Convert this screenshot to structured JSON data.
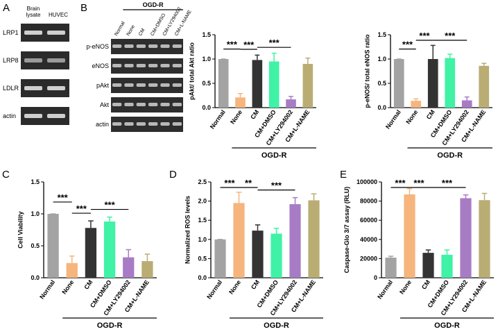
{
  "blots": [
    {
      "panel": "A",
      "columns": [
        "Brain lysate",
        "HUVEC"
      ],
      "rows": [
        "LRP1",
        "LRP8",
        "LDLR",
        "actin"
      ]
    },
    {
      "panel": "B",
      "group": "OGD-R",
      "columns": [
        "Normal",
        "None",
        "CM",
        "CM+DMSO",
        "CM+LY294002",
        "CM+L-NAME"
      ],
      "rows": [
        "p-eNOS",
        "eNOS",
        "pAkt",
        "Akt",
        "actin"
      ]
    }
  ],
  "chart_data": [
    {
      "type": "bar",
      "ylabel": "pAkt/ total Akt ratio",
      "categories": [
        "Normal",
        "None",
        "CM",
        "CM+DMSO",
        "CM+LY294002",
        "CM+L-NAME"
      ],
      "colors": [
        "#a3a3a3",
        "#f5b57d",
        "#333333",
        "#3ff2a6",
        "#a77cc5",
        "#b9ad74"
      ],
      "values": [
        1.0,
        0.21,
        0.98,
        0.95,
        0.17,
        0.9
      ],
      "errors": [
        0,
        0.08,
        0.1,
        0.17,
        0.06,
        0.12
      ],
      "ylim": [
        0,
        1.5
      ],
      "yticks": [
        {
          "value": 0,
          "label": "0.0"
        },
        0.5,
        {
          "value": 1,
          "label": "1.0"
        },
        1.5
      ],
      "grid": false,
      "group": {
        "label": "OGD-R",
        "from": "None",
        "to": "CM+L-NAME"
      },
      "annotations": [
        {
          "text": "***",
          "from": "Normal",
          "to": "None"
        },
        {
          "text": "***",
          "from": "None",
          "to": "CM"
        },
        {
          "text": "***",
          "from": "CM",
          "to": "CM+LY294002"
        }
      ]
    },
    {
      "type": "bar",
      "ylabel": "p-eNOS/ total eNOS ratio",
      "categories": [
        "Normal",
        "None",
        "CM",
        "CM+DMSO",
        "CM+LY294002",
        "CM+L-NAME"
      ],
      "colors": [
        "#a3a3a3",
        "#f5b57d",
        "#333333",
        "#3ff2a6",
        "#a77cc5",
        "#b9ad74"
      ],
      "values": [
        1.0,
        0.14,
        1.0,
        1.02,
        0.15,
        0.86
      ],
      "errors": [
        0,
        0.04,
        0.28,
        0.08,
        0.07,
        0.05
      ],
      "ylim": [
        0,
        1.5
      ],
      "yticks": [
        {
          "value": 0,
          "label": "0.0"
        },
        0.5,
        {
          "value": 1,
          "label": "1.0"
        },
        1.5
      ],
      "grid": false,
      "group": {
        "label": "OGD-R",
        "from": "None",
        "to": "CM+L-NAME"
      },
      "annotations": [
        {
          "text": "***",
          "from": "Normal",
          "to": "None"
        },
        {
          "text": "***",
          "from": "None",
          "to": "CM"
        },
        {
          "text": "***",
          "from": "CM",
          "to": "CM+LY294002"
        }
      ]
    },
    {
      "type": "bar",
      "panel": "C",
      "ylabel": "Cell Viability",
      "categories": [
        "Normal",
        "None",
        "CM",
        "CM+DMSO",
        "CM+LY294002",
        "CM+L-NAME"
      ],
      "colors": [
        "#a3a3a3",
        "#f5b57d",
        "#333333",
        "#3ff2a6",
        "#a77cc5",
        "#b9ad74"
      ],
      "values": [
        1.0,
        0.23,
        0.78,
        0.88,
        0.32,
        0.26
      ],
      "errors": [
        0,
        0.11,
        0.11,
        0.07,
        0.12,
        0.11
      ],
      "ylim": [
        0,
        1.5
      ],
      "yticks": [
        {
          "value": 0,
          "label": "0.0"
        },
        0.5,
        {
          "value": 1,
          "label": "1.0"
        },
        1.5
      ],
      "grid": false,
      "group": {
        "label": "OGD-R",
        "from": "None",
        "to": "CM+L-NAME"
      },
      "annotations": [
        {
          "text": "***",
          "from": "Normal",
          "to": "None"
        },
        {
          "text": "***",
          "from": "None",
          "to": "CM"
        },
        {
          "text": "***",
          "from": "CM",
          "to": "CM+LY294002"
        }
      ]
    },
    {
      "type": "bar",
      "panel": "D",
      "ylabel": "Normalized ROS levels",
      "categories": [
        "Normal",
        "None",
        "CM",
        "CM+DMSO",
        "CM+LY294002",
        "CM+L-NAME"
      ],
      "colors": [
        "#a3a3a3",
        "#f5b57d",
        "#333333",
        "#3ff2a6",
        "#a77cc5",
        "#b9ad74"
      ],
      "values": [
        1.0,
        1.95,
        1.23,
        1.15,
        1.92,
        2.02
      ],
      "errors": [
        0,
        0.28,
        0.15,
        0.14,
        0.17,
        0.17
      ],
      "ylim": [
        0,
        2.5
      ],
      "yticks": [
        {
          "value": 0,
          "label": "0.0"
        },
        0.5,
        {
          "value": 1,
          "label": "1.0"
        },
        1.5,
        {
          "value": 2,
          "label": "2.0"
        },
        2.5
      ],
      "grid": false,
      "group": {
        "label": "OGD-R",
        "from": "None",
        "to": "CM+L-NAME"
      },
      "annotations": [
        {
          "text": "***",
          "from": "Normal",
          "to": "None"
        },
        {
          "text": "**",
          "from": "None",
          "to": "CM"
        },
        {
          "text": "***",
          "from": "CM",
          "to": "CM+LY294002"
        }
      ]
    },
    {
      "type": "bar",
      "panel": "E",
      "ylabel": "Caspase-Glo 3/7 assay (RLU)",
      "categories": [
        "Normal",
        "None",
        "CM",
        "CM+DMSO",
        "CM+LY294002",
        "CM+L-NAME"
      ],
      "colors": [
        "#a3a3a3",
        "#f5b57d",
        "#333333",
        "#3ff2a6",
        "#a77cc5",
        "#b9ad74"
      ],
      "values": [
        21000,
        87000,
        26000,
        24000,
        83000,
        81000
      ],
      "errors": [
        1500,
        6000,
        3000,
        5000,
        3500,
        7000
      ],
      "ylim": [
        0,
        100000
      ],
      "yticks": [
        0,
        20000,
        40000,
        60000,
        80000,
        100000
      ],
      "grid": false,
      "group": {
        "label": "OGD-R",
        "from": "None",
        "to": "CM+L-NAME"
      },
      "annotations": [
        {
          "text": "***",
          "from": "Normal",
          "to": "None"
        },
        {
          "text": "***",
          "from": "None",
          "to": "CM"
        },
        {
          "text": "***",
          "from": "CM",
          "to": "CM+LY294002"
        }
      ]
    }
  ]
}
